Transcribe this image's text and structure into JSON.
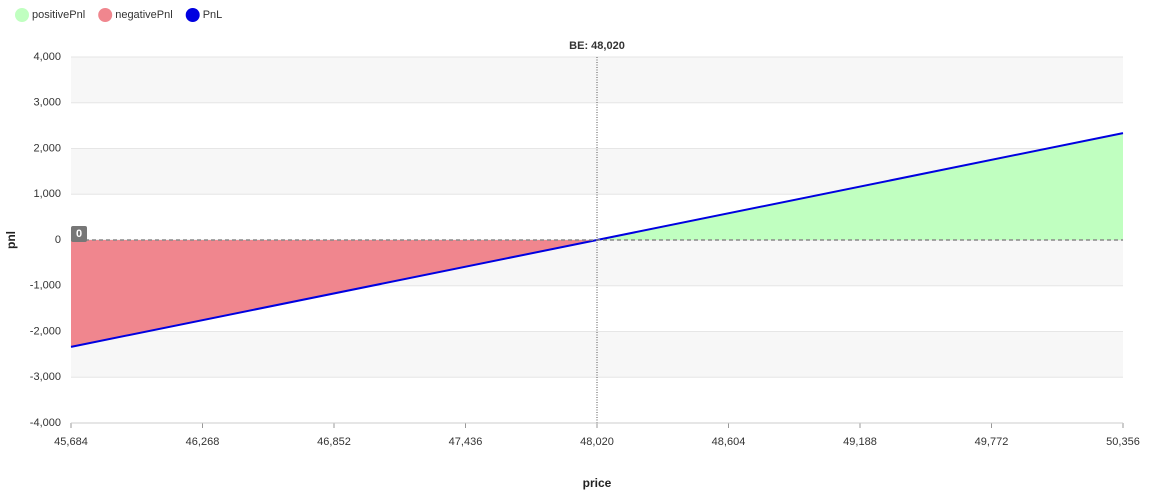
{
  "chart_data": {
    "type": "line",
    "x_label": "price",
    "y_label": "pnl",
    "x": [
      45684,
      48020,
      50356
    ],
    "series": [
      {
        "name": "positivePnl",
        "color": "#c0ffc0",
        "kind": "area",
        "values": [
          null,
          0,
          2336
        ]
      },
      {
        "name": "negativePnl",
        "color": "#f0868e",
        "kind": "area",
        "values": [
          -2336,
          0,
          null
        ]
      },
      {
        "name": "PnL",
        "color": "#0000e0",
        "kind": "line",
        "values": [
          -2336,
          0,
          2336
        ]
      }
    ],
    "xlim": [
      45684,
      50356
    ],
    "xticks": [
      {
        "value": 45684,
        "label": "45,684"
      },
      {
        "value": 46268,
        "label": "46,268"
      },
      {
        "value": 46852,
        "label": "46,852"
      },
      {
        "value": 47436,
        "label": "47,436"
      },
      {
        "value": 48020,
        "label": "48,020"
      },
      {
        "value": 48604,
        "label": "48,604"
      },
      {
        "value": 49188,
        "label": "49,188"
      },
      {
        "value": 49772,
        "label": "49,772"
      },
      {
        "value": 50356,
        "label": "50,356"
      }
    ],
    "ylim": [
      -4000,
      4000
    ],
    "yticks": [
      {
        "value": -4000,
        "label": "-4,000"
      },
      {
        "value": -3000,
        "label": "-3,000"
      },
      {
        "value": -2000,
        "label": "-2,000"
      },
      {
        "value": -1000,
        "label": "-1,000"
      },
      0,
      {
        "value": 1000,
        "label": "1,000"
      },
      {
        "value": 2000,
        "label": "2,000"
      },
      {
        "value": 3000,
        "label": "3,000"
      },
      {
        "value": 4000,
        "label": "4,000"
      }
    ],
    "grid": true,
    "legend": "top-left",
    "x_annotations": [
      {
        "x": 48020,
        "label": "BE: 48,020"
      }
    ],
    "y_annotations": [
      {
        "y": 0,
        "label": "0"
      }
    ]
  }
}
